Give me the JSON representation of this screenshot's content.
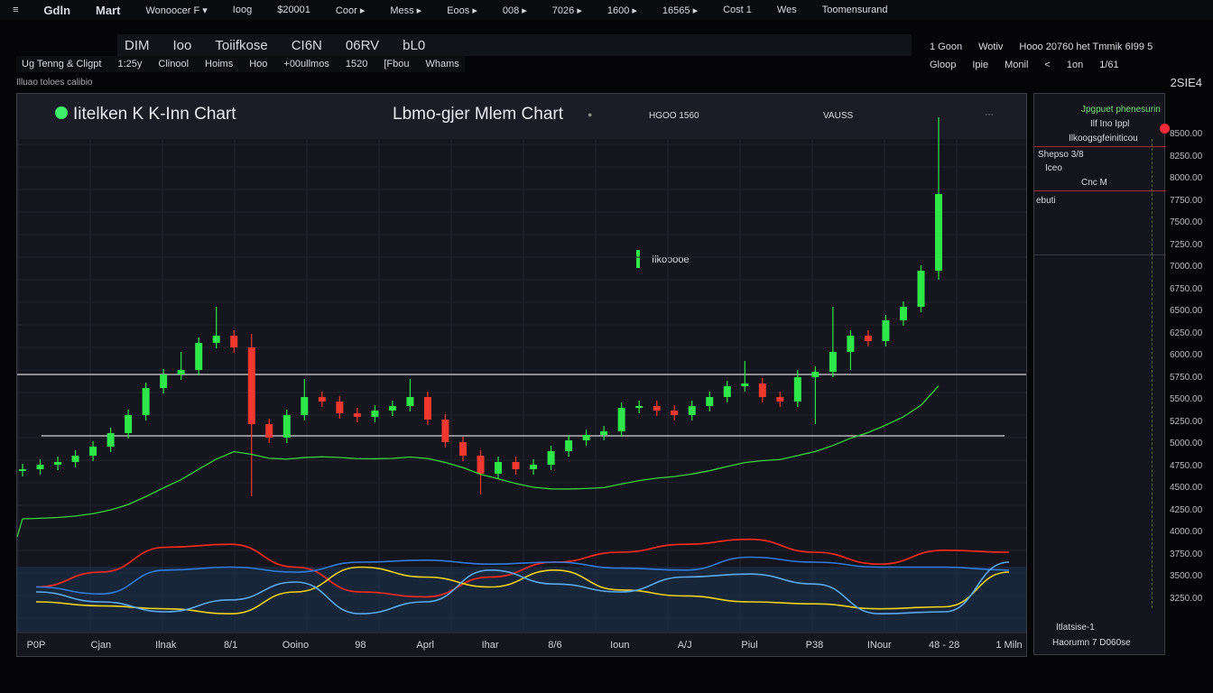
{
  "menubar": {
    "items": [
      "Gdln",
      "Mart",
      "Wonoocer F ▾",
      "Ioog",
      "$20001",
      "Coor ▸",
      "Mess ▸",
      "Eoos ▸",
      "008 ▸",
      "7026 ▸",
      "1600 ▸",
      "16565 ▸",
      "Cost 1",
      "Wes",
      "Toomensurand"
    ]
  },
  "toolbar": {
    "items": [
      "DIM",
      "Ioo",
      "Toiifkose",
      "CI6N",
      "06RV",
      "bL0"
    ]
  },
  "toolbar_sub": {
    "items": [
      "Ug Tenng & Cligpt",
      "1:25y",
      "Clinool",
      "Hoims",
      "Hoo",
      "+00ullmos",
      "1520",
      "[Fbou",
      "Whams"
    ]
  },
  "right_tools": {
    "row1": [
      "1 Goon",
      "Wotiv",
      "Hooo 20760 het Tmmik 6I99 5"
    ],
    "row2": [
      "Gloop",
      "Ipie",
      "Monil",
      "<",
      "1on",
      "1/61"
    ]
  },
  "subheader": {
    "left": "Illuao toloes calibio",
    "right": "2SIE4"
  },
  "chart_header": {
    "title_left": "Iitelken K K-Inn Chart",
    "title_center": "Lbmo-gjer Mlem Chart",
    "stat1": "HGOO 1560",
    "stat2": "VAUSS",
    "marker": "Ilkooooe"
  },
  "side_panel": {
    "line1": "Jpgpuet phenesurin",
    "line2": "Ilf Ino Ippl",
    "line3": "Ilkoogsgfeiniticou",
    "line4": "Shepso 3/8",
    "line5": "Iceo",
    "line6": "Cnc M",
    "line7": "ebuti",
    "footer1": "Itlatsise-1",
    "footer2": "Haorumn 7 D060se"
  },
  "colors": {
    "up": "#2ee84a",
    "down": "#f0382e",
    "ma": "#39d43a",
    "red": "#ff2a1a",
    "blue": "#2f7be0",
    "yellow": "#f2d21a",
    "lightblue": "#5aa8f0",
    "accent": "#ff2a3a"
  },
  "chart_data": [
    {
      "type": "candlestick",
      "y_axis_labels": [
        "8500.00",
        "8250.00",
        "8000.00",
        "7750.00",
        "7500.00",
        "7250.00",
        "7000.00",
        "6750.00",
        "6500.00",
        "6250.00",
        "6000.00",
        "5750.00",
        "5500.00",
        "5250.00",
        "5000.00",
        "4750.00",
        "4500.00",
        "4250.00",
        "4000.00",
        "3750.00",
        "3500.00",
        "3250.00"
      ],
      "open": [
        4780,
        4800,
        4850,
        4880,
        4950,
        5050,
        5200,
        5400,
        5700,
        5850,
        5900,
        6200,
        6280,
        6150,
        5300,
        5150,
        5400,
        5600,
        5550,
        5420,
        5380,
        5450,
        5500,
        5600,
        5350,
        5100,
        4950,
        4750,
        4880,
        4800,
        4850,
        5000,
        5120,
        5180,
        5220,
        5480,
        5500,
        5450,
        5400,
        5500,
        5600,
        5720,
        5750,
        5600,
        5550,
        5820,
        5880,
        6100,
        6280,
        6220,
        6450,
        6600,
        7000
      ],
      "high": [
        4860,
        4910,
        4940,
        5010,
        5110,
        5260,
        5460,
        5760,
        5910,
        6100,
        6260,
        6600,
        6340,
        6300,
        5360,
        5460,
        5800,
        5660,
        5610,
        5480,
        5510,
        5560,
        5800,
        5660,
        5410,
        5160,
        5010,
        4940,
        4940,
        4910,
        5060,
        5180,
        5240,
        5280,
        5540,
        5560,
        5560,
        5510,
        5560,
        5660,
        5780,
        6000,
        5810,
        5660,
        5900,
        5940,
        6600,
        6340,
        6340,
        6510,
        6660,
        7060,
        8700
      ],
      "low": [
        4720,
        4740,
        4790,
        4820,
        4890,
        4990,
        5140,
        5340,
        5640,
        5790,
        5840,
        6140,
        6090,
        4500,
        5090,
        5090,
        5340,
        5490,
        5360,
        5320,
        5320,
        5390,
        5440,
        5290,
        5040,
        4890,
        4520,
        4690,
        4740,
        4740,
        4790,
        4940,
        5060,
        5120,
        5160,
        5420,
        5390,
        5340,
        5340,
        5440,
        5540,
        5660,
        5540,
        5490,
        5490,
        5300,
        5820,
        5900,
        6160,
        6160,
        6390,
        6540,
        6900
      ],
      "close": [
        4800,
        4850,
        4880,
        4950,
        5050,
        5200,
        5400,
        5700,
        5850,
        5900,
        6200,
        6280,
        6150,
        5300,
        5150,
        5400,
        5600,
        5550,
        5420,
        5380,
        5450,
        5500,
        5600,
        5350,
        5100,
        4950,
        4750,
        4880,
        4800,
        4850,
        5000,
        5120,
        5180,
        5220,
        5480,
        5500,
        5450,
        5400,
        5500,
        5600,
        5720,
        5750,
        5600,
        5550,
        5820,
        5880,
        6100,
        6280,
        6220,
        6450,
        6600,
        7000,
        7850
      ],
      "horizontal_levels": [
        5850,
        5170
      ]
    },
    {
      "type": "line",
      "x_labels": [
        "P0P",
        "Cjan",
        "Ilnak",
        "8/1",
        "Ooino",
        "98",
        "Aprl",
        "Ihar",
        "8/6",
        "Ioun",
        "A/J",
        "Piul",
        "P38",
        "INour",
        "48 - 28",
        "1 Miln"
      ],
      "series": [
        {
          "color": "red",
          "values": [
            45,
            60,
            85,
            88,
            65,
            40,
            35,
            55,
            70,
            80,
            88,
            93,
            80,
            68,
            82,
            80
          ]
        },
        {
          "color": "blue",
          "values": [
            45,
            38,
            62,
            65,
            60,
            70,
            72,
            68,
            70,
            64,
            62,
            75,
            70,
            65,
            65,
            62
          ]
        },
        {
          "color": "yellow",
          "values": [
            30,
            26,
            23,
            18,
            40,
            65,
            55,
            45,
            62,
            42,
            36,
            30,
            28,
            23,
            25,
            60
          ]
        },
        {
          "color": "lightblue",
          "values": [
            40,
            30,
            20,
            32,
            50,
            18,
            30,
            62,
            48,
            40,
            55,
            58,
            48,
            18,
            20,
            70
          ]
        }
      ],
      "ylim": [
        0,
        100
      ]
    }
  ]
}
